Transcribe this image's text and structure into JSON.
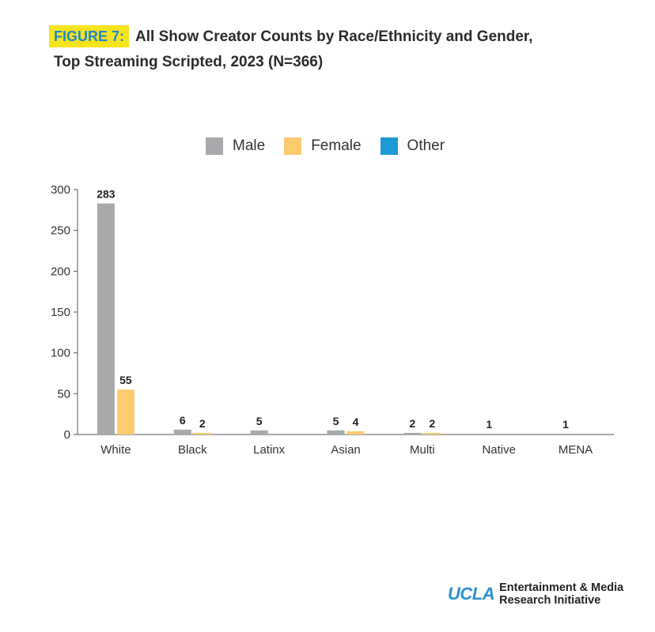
{
  "header": {
    "figure_label": "FIGURE 7:",
    "title_line1": "All Show Creator Counts by Race/Ethnicity and Gender,",
    "title_line2": "Top Streaming Scripted, 2023 (N=366)"
  },
  "legend": [
    {
      "label": "Male",
      "color": "#a7a9ab"
    },
    {
      "label": "Female",
      "color": "#fccb6e"
    },
    {
      "label": "Other",
      "color": "#1e9ad6"
    }
  ],
  "chart_data": {
    "type": "bar",
    "categories": [
      "White",
      "Black",
      "Latinx",
      "Asian",
      "Multi",
      "Native",
      "MENA"
    ],
    "series": [
      {
        "name": "Male",
        "color": "#a7a9ab",
        "values": [
          283,
          6,
          5,
          5,
          2,
          1,
          1
        ]
      },
      {
        "name": "Female",
        "color": "#fccb6e",
        "values": [
          55,
          2,
          0,
          4,
          2,
          0,
          0
        ]
      },
      {
        "name": "Other",
        "color": "#1e9ad6",
        "values": [
          0,
          0,
          0,
          0,
          0,
          0,
          0
        ]
      }
    ],
    "data_labels": [
      [
        "283",
        "6",
        "5",
        "5",
        "2",
        "1",
        "1"
      ],
      [
        "55",
        "2",
        "",
        "4",
        "2",
        "",
        ""
      ],
      [
        "",
        "",
        "",
        "",
        "",
        "",
        ""
      ]
    ],
    "yticks": [
      0,
      50,
      100,
      150,
      200,
      250,
      300
    ],
    "ylim": [
      0,
      300
    ],
    "legend_position": "top-center",
    "grid": false
  },
  "logo": {
    "brand": "UCLA",
    "line1": "Entertainment & Media",
    "line2": "Research Initiative"
  }
}
